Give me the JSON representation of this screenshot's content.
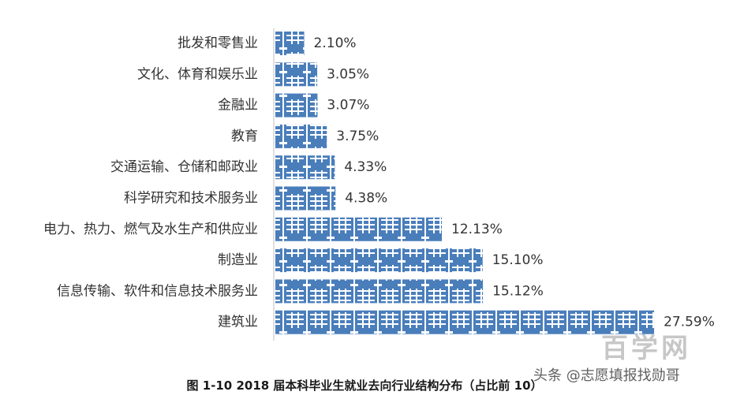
{
  "chart_data": {
    "type": "bar",
    "orientation": "horizontal",
    "categories": [
      "批发和零售业",
      "文化、体育和娱乐业",
      "金融业",
      "教育",
      "交通运输、仓储和邮政业",
      "科学研究和技术服务业",
      "电力、热力、燃气及水生产和供应业",
      "制造业",
      "信息传输、软件和信息技术服务业",
      "建筑业"
    ],
    "values": [
      2.1,
      3.05,
      3.07,
      3.75,
      4.33,
      4.38,
      12.13,
      15.1,
      15.12,
      27.59
    ],
    "value_labels": [
      "2.10%",
      "3.05%",
      "3.07%",
      "3.75%",
      "4.33%",
      "4.38%",
      "12.13%",
      "15.10%",
      "15.12%",
      "27.59%"
    ],
    "xlim": [
      0,
      28
    ],
    "bar_color": "#4a7ebb",
    "grid": false,
    "legend": "none"
  },
  "caption": "图 1-10 2018 届本科毕业生就业去向行业结构分布（占比前 10）",
  "watermark": {
    "handle": "头条 @志愿填报找勋哥",
    "logo": "百学网"
  }
}
